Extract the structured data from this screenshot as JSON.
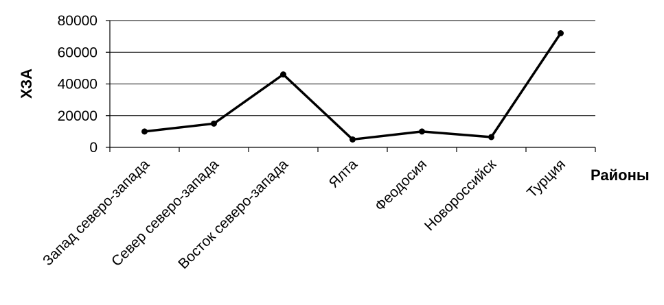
{
  "chart_data": {
    "type": "line",
    "title": "",
    "xlabel": "Районы",
    "ylabel": "ХЗА",
    "categories": [
      "Запад северо-запада",
      "Север северо-запада",
      "Восток северо-запада",
      "Ялта",
      "Феодосия",
      "Новороссийск",
      "Турция"
    ],
    "series": [
      {
        "values": [
          10000,
          15000,
          46000,
          5000,
          10000,
          6500,
          72000
        ],
        "color": "#000000"
      }
    ],
    "ylim": [
      0,
      80000
    ],
    "yticks": [
      "0",
      "20000",
      "40000",
      "60000",
      "80000"
    ],
    "grid": true,
    "legend": "none"
  }
}
